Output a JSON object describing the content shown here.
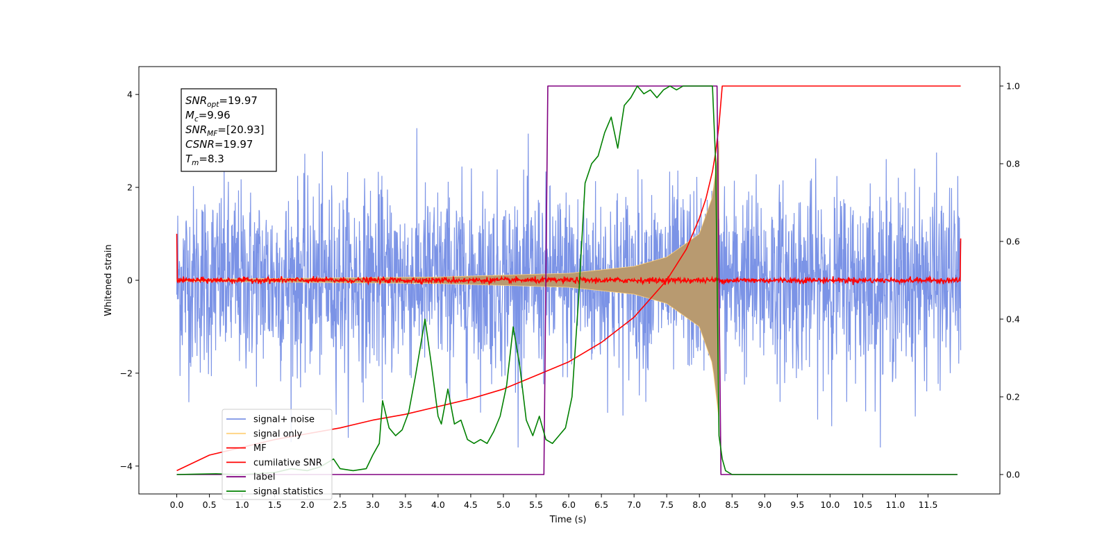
{
  "chart_data": {
    "type": "line",
    "title": "",
    "xlabel": "Time (s)",
    "ylabel": "Whitened strain",
    "xlim": [
      -0.58,
      12.6
    ],
    "ylim": [
      -4.6,
      4.6
    ],
    "y2lim": [
      -0.05,
      1.05
    ],
    "x_ticks": [
      "0.0",
      "0.5",
      "1.0",
      "1.5",
      "2.0",
      "2.5",
      "3.0",
      "3.5",
      "4.0",
      "4.5",
      "5.0",
      "5.5",
      "6.0",
      "6.5",
      "7.0",
      "7.5",
      "8.0",
      "8.5",
      "9.0",
      "9.5",
      "10.0",
      "10.5",
      "11.0",
      "11.5"
    ],
    "y_ticks": [
      "4",
      "2",
      "0",
      "−2",
      "−4"
    ],
    "y2_ticks": [
      "1.0",
      "0.8",
      "0.6",
      "0.4",
      "0.2",
      "0.0"
    ],
    "grid": false,
    "legend_position": "lower-left",
    "annotation": {
      "lines": [
        {
          "sym": "SNR",
          "sub": "opt",
          "val": "=19.97"
        },
        {
          "sym": "M",
          "sub": "c",
          "val": "=9.96"
        },
        {
          "sym": "SNR",
          "sub": "MF",
          "val": "=[20.93]"
        },
        {
          "sym": "CSNR",
          "sub": "",
          "val": "=19.97"
        },
        {
          "sym": "T",
          "sub": "m",
          "val": "=8.3"
        }
      ]
    },
    "series": [
      {
        "name": "signal+ noise",
        "color": "#7b93e6",
        "axis": "left",
        "kind": "noise",
        "x_range": [
          0.0,
          12.0
        ],
        "sigma": 1.0,
        "max_abs": 3.6
      },
      {
        "name": "signal only",
        "color": "#ffd27f",
        "axis": "left",
        "kind": "chirp",
        "x_start": 0.0,
        "x_merge": 8.3,
        "amplitude_envelope": [
          [
            0.0,
            0.02
          ],
          [
            4.0,
            0.07
          ],
          [
            6.0,
            0.15
          ],
          [
            7.0,
            0.3
          ],
          [
            7.5,
            0.5
          ],
          [
            8.0,
            1.0
          ],
          [
            8.2,
            1.8
          ],
          [
            8.3,
            3.0
          ]
        ]
      },
      {
        "name": "MF",
        "color": "#ff0000",
        "axis": "left",
        "kind": "noise",
        "x_range": [
          0.0,
          12.0
        ],
        "sigma": 0.03,
        "max_abs": 0.15,
        "edge_values": [
          1.0,
          0.9
        ]
      },
      {
        "name": "cumilative SNR",
        "color": "#ff0000",
        "axis": "right",
        "x": [
          0.0,
          0.5,
          1.0,
          1.5,
          2.0,
          2.5,
          3.0,
          3.5,
          4.0,
          4.5,
          5.0,
          5.5,
          6.0,
          6.5,
          7.0,
          7.5,
          7.8,
          8.0,
          8.1,
          8.2,
          8.25,
          8.3,
          8.35,
          12.0
        ],
        "values": [
          0.01,
          0.05,
          0.07,
          0.09,
          0.105,
          0.12,
          0.14,
          0.155,
          0.175,
          0.195,
          0.22,
          0.255,
          0.29,
          0.34,
          0.405,
          0.5,
          0.58,
          0.66,
          0.71,
          0.78,
          0.83,
          0.9,
          1.0,
          1.0
        ]
      },
      {
        "name": "label",
        "color": "#800080",
        "axis": "right",
        "x": [
          0.0,
          5.62,
          5.68,
          8.27,
          8.33,
          11.95
        ],
        "values": [
          0.0,
          0.0,
          1.0,
          1.0,
          0.0,
          0.0
        ]
      },
      {
        "name": "signal statistics",
        "color": "#008000",
        "axis": "right",
        "x": [
          0.0,
          0.3,
          0.6,
          1.0,
          1.5,
          1.75,
          2.0,
          2.2,
          2.4,
          2.5,
          2.7,
          2.9,
          3.0,
          3.1,
          3.15,
          3.25,
          3.35,
          3.45,
          3.55,
          3.65,
          3.75,
          3.8,
          3.9,
          4.0,
          4.05,
          4.15,
          4.25,
          4.35,
          4.45,
          4.55,
          4.65,
          4.75,
          4.85,
          4.95,
          5.05,
          5.15,
          5.25,
          5.35,
          5.45,
          5.55,
          5.65,
          5.75,
          5.85,
          5.95,
          6.05,
          6.15,
          6.25,
          6.35,
          6.45,
          6.55,
          6.65,
          6.75,
          6.85,
          6.95,
          7.05,
          7.15,
          7.25,
          7.35,
          7.45,
          7.55,
          7.65,
          7.75,
          7.85,
          7.95,
          8.1,
          8.2,
          8.25,
          8.3,
          8.35,
          8.4,
          8.5,
          9.0,
          10.0,
          11.0,
          11.95
        ],
        "values": [
          0.0,
          0.001,
          0.002,
          0.0,
          0.005,
          0.015,
          0.01,
          0.02,
          0.04,
          0.015,
          0.01,
          0.015,
          0.05,
          0.08,
          0.19,
          0.12,
          0.1,
          0.115,
          0.16,
          0.25,
          0.35,
          0.4,
          0.28,
          0.15,
          0.13,
          0.22,
          0.13,
          0.14,
          0.09,
          0.08,
          0.09,
          0.08,
          0.11,
          0.15,
          0.23,
          0.38,
          0.28,
          0.14,
          0.1,
          0.15,
          0.09,
          0.08,
          0.1,
          0.12,
          0.2,
          0.45,
          0.75,
          0.8,
          0.82,
          0.88,
          0.92,
          0.84,
          0.95,
          0.97,
          1.0,
          0.98,
          0.99,
          0.97,
          0.99,
          1.0,
          0.99,
          1.0,
          1.0,
          1.0,
          1.0,
          1.0,
          0.8,
          0.1,
          0.04,
          0.01,
          0.0,
          0.0,
          0.0,
          0.0,
          0.0
        ]
      }
    ]
  }
}
